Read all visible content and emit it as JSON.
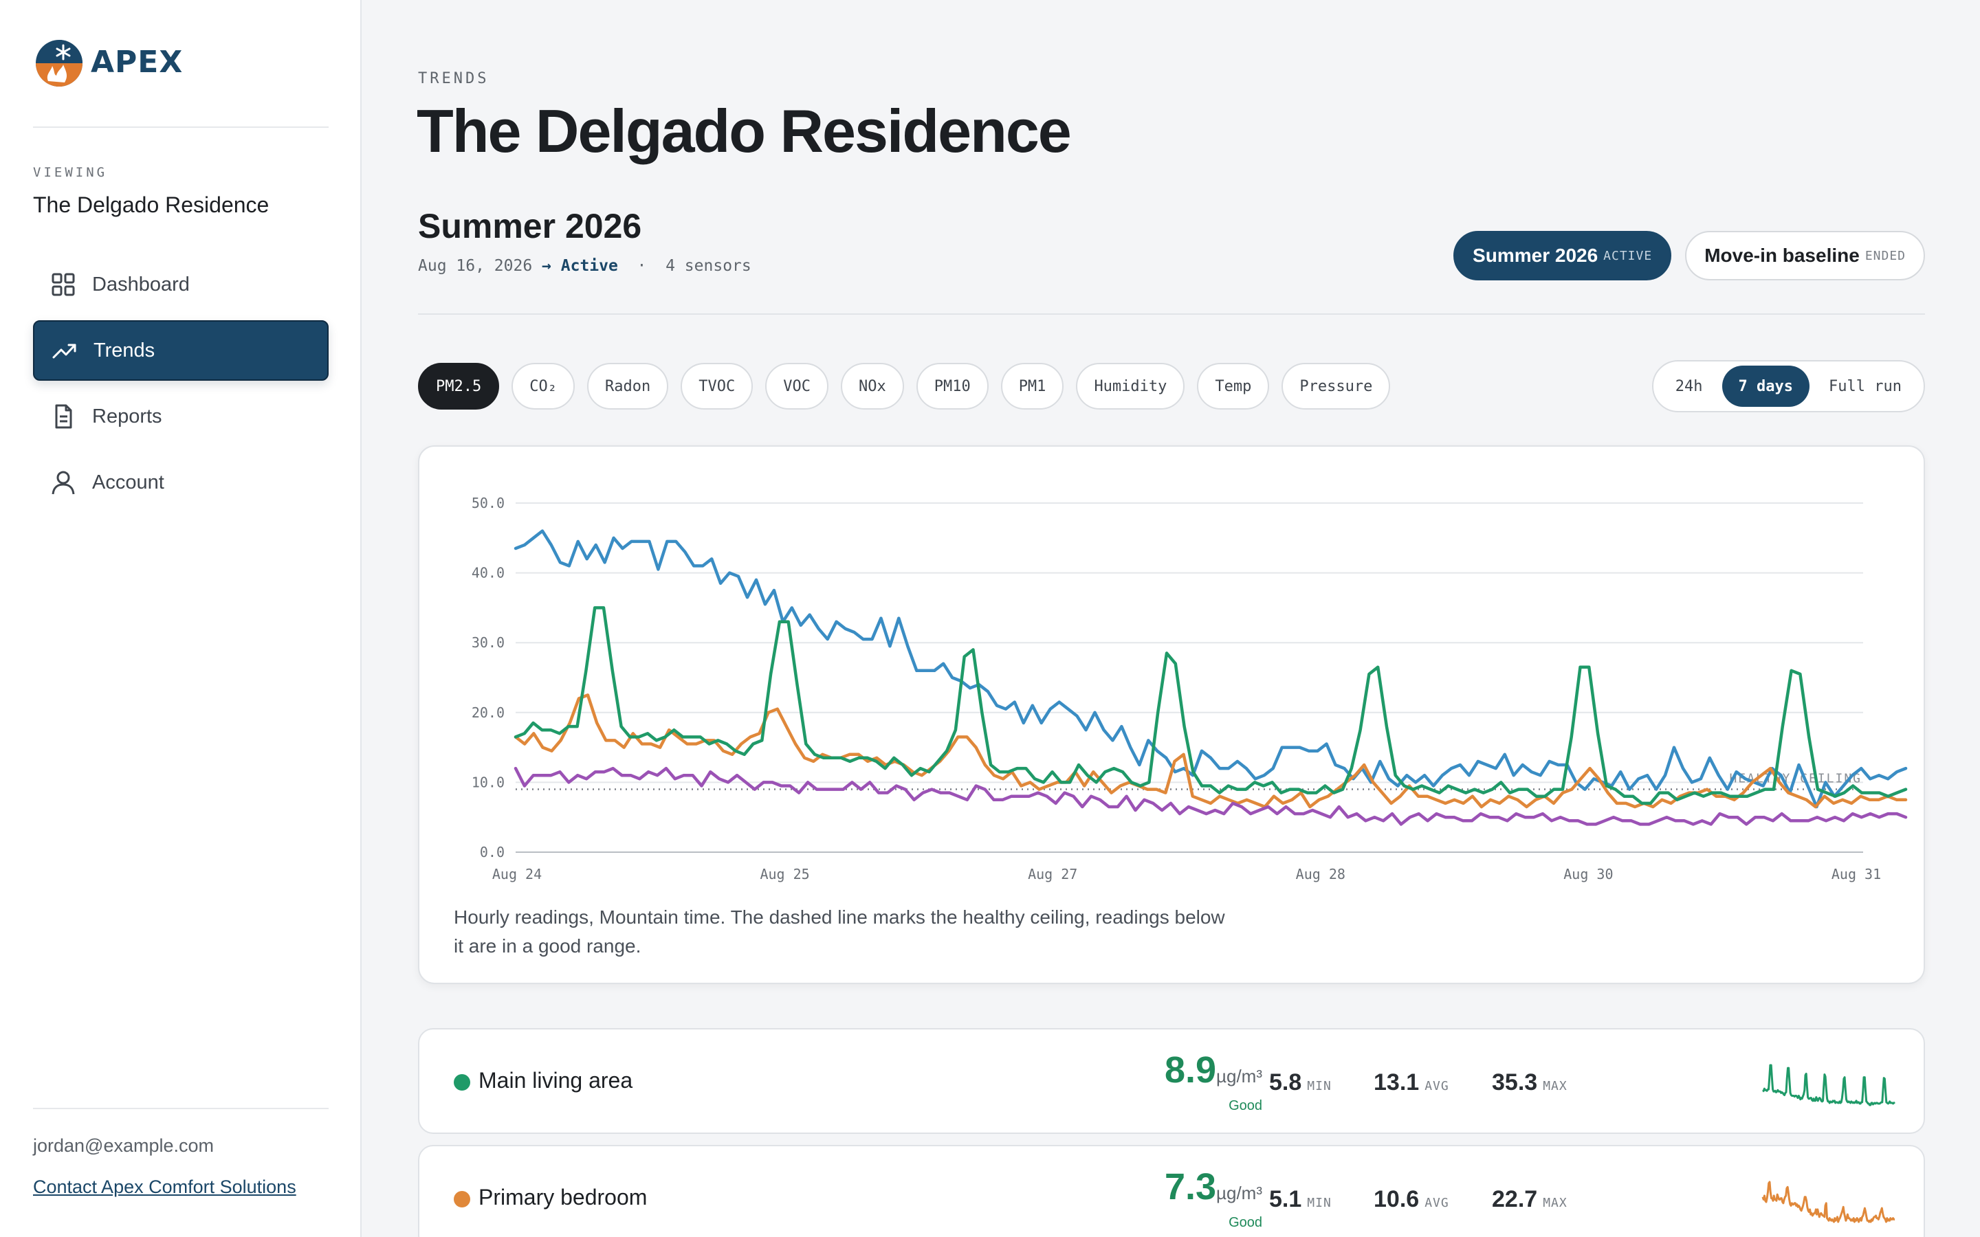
{
  "brand": {
    "name": "APEX"
  },
  "sidebar": {
    "viewing_label": "VIEWING",
    "viewing_name": "The Delgado Residence",
    "nav": [
      {
        "label": "Dashboard",
        "icon": "grid-icon",
        "active": false
      },
      {
        "label": "Trends",
        "icon": "trend-icon",
        "active": true
      },
      {
        "label": "Reports",
        "icon": "document-icon",
        "active": false
      },
      {
        "label": "Account",
        "icon": "user-icon",
        "active": false
      }
    ],
    "user_email": "jordan@example.com",
    "contact_link": "Contact Apex Comfort Solutions"
  },
  "header": {
    "eyebrow": "TRENDS",
    "title": "The Delgado Residence"
  },
  "season": {
    "title": "Summer 2026",
    "start": "Aug 16, 2026",
    "arrow": "→",
    "status": "Active",
    "separator": "·",
    "sensors": "4 sensors",
    "pills": [
      {
        "label": "Summer 2026",
        "tag": "ACTIVE",
        "selected": true
      },
      {
        "label": "Move-in baseline",
        "tag": "ENDED",
        "selected": false
      }
    ]
  },
  "metrics": [
    "PM2.5",
    "CO₂",
    "Radon",
    "TVOC",
    "VOC",
    "NOx",
    "PM10",
    "PM1",
    "Humidity",
    "Temp",
    "Pressure"
  ],
  "selected_metric": "PM2.5",
  "ranges": [
    "24h",
    "7 days",
    "Full run"
  ],
  "selected_range": "7 days",
  "chart_caption": "Hourly readings, Mountain time. The dashed line marks the healthy ceiling, readings below it are in a good range.",
  "chart_data": {
    "type": "line",
    "x_labels": [
      "Aug 24",
      "Aug 25",
      "Aug 27",
      "Aug 28",
      "Aug 30",
      "Aug 31"
    ],
    "x_label_positions": [
      0,
      1,
      2,
      3,
      4,
      5
    ],
    "y_ticks": [
      "0.0",
      "10.0",
      "20.0",
      "30.0",
      "40.0",
      "50.0"
    ],
    "ylim": [
      0,
      50
    ],
    "grid": true,
    "reference_line": {
      "value": 9,
      "label": "HEALTHY CEILING",
      "style": "dotted"
    },
    "series": [
      {
        "color": "#3a8dc4",
        "values": [
          43.5,
          44,
          45,
          46,
          44,
          41.5,
          41,
          44.5,
          42,
          44,
          41.5,
          45,
          43.5,
          44.5,
          44.5,
          44.5,
          40.5,
          44.5,
          44.5,
          43,
          41,
          41,
          42,
          38.5,
          40,
          39.5,
          36.5,
          39,
          35.5,
          37.5,
          33,
          35,
          32.5,
          34,
          32,
          30.5,
          33,
          32,
          31.5,
          30.5,
          30.5,
          33.5,
          29.5,
          33.5,
          29.5,
          26,
          26,
          26,
          27,
          25,
          24.5,
          23.5,
          24,
          23,
          21,
          20.5,
          21.5,
          18.5,
          21,
          18.5,
          20.5,
          21.5,
          20.5,
          19.5,
          17.5,
          20,
          17.5,
          16,
          18,
          15,
          12.5,
          16,
          14.5,
          13.5,
          11.5,
          12,
          11,
          14.5,
          13.5,
          12,
          12,
          13,
          12,
          10.5,
          11,
          12,
          15,
          15,
          15,
          14.5,
          14.5,
          15.5,
          12.5,
          12,
          10.5,
          12,
          10,
          13,
          10.5,
          9.5,
          11,
          10,
          11,
          9.5,
          11,
          12,
          12.5,
          11,
          13,
          12.5,
          12,
          14,
          11,
          12.5,
          11.5,
          11,
          13,
          12.5,
          12.5,
          10,
          9,
          10.5,
          10,
          9.5,
          11.5,
          9,
          10.5,
          11,
          9,
          11,
          15,
          12,
          10,
          10.5,
          13.5,
          11,
          9,
          11.5,
          10.5,
          10,
          9.5,
          12,
          11,
          8.5,
          12.5,
          9.5,
          6.5,
          10,
          8,
          9.5,
          11,
          12,
          10.5,
          11,
          10.5,
          11.5,
          12
        ]
      },
      {
        "color": "#e0883a",
        "values": [
          16.5,
          15.5,
          17,
          15,
          14.5,
          16,
          18.5,
          22,
          22.5,
          18.5,
          16,
          16,
          15,
          17,
          15.5,
          15.5,
          15,
          17.5,
          16.5,
          15.5,
          15.5,
          16,
          16,
          14.5,
          14,
          15.5,
          16.5,
          17,
          20,
          20.5,
          18,
          15.5,
          13.5,
          13,
          14,
          13.5,
          13.5,
          14,
          14,
          13,
          13.5,
          12.5,
          13,
          12.5,
          11.5,
          11,
          12,
          13,
          14.5,
          16.5,
          16.5,
          15,
          12.5,
          11,
          10.5,
          11.5,
          9.5,
          10,
          9,
          9.5,
          10,
          10,
          11.5,
          9.5,
          11.5,
          10,
          8.5,
          9.5,
          10,
          9.5,
          9,
          9,
          8.5,
          13,
          14,
          8,
          7.5,
          7,
          8,
          7.5,
          7,
          7.5,
          7,
          6.5,
          8,
          7,
          7.5,
          8.5,
          6.5,
          7.5,
          8,
          9,
          10,
          11,
          12.5,
          10,
          8.5,
          7,
          8,
          9.5,
          8,
          8,
          7.5,
          7,
          7.5,
          7,
          8,
          6.5,
          7.5,
          7,
          8,
          7.5,
          6.5,
          7.5,
          8,
          7,
          8.5,
          9,
          10.5,
          12,
          10.5,
          8.5,
          7,
          7,
          6.5,
          7,
          6.5,
          7.5,
          7,
          8,
          8.5,
          8.5,
          9,
          8,
          8,
          7.5,
          8.5,
          10,
          11,
          12,
          10,
          8.5,
          8,
          7.5,
          6.5,
          8,
          7,
          7.5,
          7,
          8,
          7.5,
          7.5,
          8,
          7.5,
          7.5
        ]
      },
      {
        "color": "#1f9a68",
        "values": [
          16.5,
          17,
          18.5,
          17.5,
          17.5,
          17,
          18,
          18,
          26,
          35,
          35,
          26,
          18,
          16.5,
          16.5,
          17,
          16,
          16.5,
          17.5,
          16.5,
          16.5,
          16.5,
          15.5,
          16,
          15.5,
          14.5,
          14,
          15.5,
          16,
          25.5,
          33,
          33,
          24,
          15.5,
          14,
          13.5,
          13.5,
          13.5,
          13,
          13.5,
          13.5,
          13,
          12,
          13.5,
          12.5,
          11,
          12,
          11.5,
          13,
          14.5,
          17.5,
          28,
          29,
          20,
          12.5,
          11.5,
          11.5,
          12,
          12,
          10.5,
          10,
          11.5,
          10,
          10,
          12.5,
          11,
          10,
          11.5,
          12,
          11.5,
          10,
          9.5,
          10,
          20,
          28.5,
          27,
          18,
          11.5,
          9.5,
          9.5,
          8.5,
          9.5,
          9,
          9,
          10,
          9.5,
          10,
          8.5,
          9,
          9,
          8.5,
          8.5,
          9.5,
          8.5,
          9,
          12,
          17.5,
          25.5,
          26.5,
          18,
          11,
          9.5,
          9,
          9.5,
          9,
          8.5,
          9.5,
          9,
          8.5,
          9,
          8.5,
          9,
          10,
          8.5,
          9,
          9,
          8,
          8,
          9,
          9,
          16.5,
          26.5,
          26.5,
          17,
          9.5,
          9,
          8,
          8,
          7,
          7,
          8.5,
          8.5,
          7.5,
          8,
          8.5,
          8,
          8.5,
          8.5,
          8,
          8,
          8,
          8.5,
          9,
          9,
          18,
          26,
          25.5,
          16.5,
          9,
          8.5,
          8,
          8.5,
          9.5,
          8.5,
          8.5,
          8.5,
          8,
          8.5,
          9
        ]
      },
      {
        "color": "#9b52b5",
        "values": [
          12,
          9.5,
          11,
          11,
          11,
          11.5,
          10,
          11,
          10.5,
          11.5,
          11.5,
          12,
          11,
          11,
          10.5,
          11.5,
          11,
          12,
          10.5,
          11,
          11,
          9.5,
          11.5,
          10.5,
          10,
          11,
          10,
          9,
          10,
          10,
          9.5,
          9.5,
          8.5,
          10,
          9,
          9,
          9,
          9,
          10,
          9,
          10,
          8.5,
          8.5,
          9.5,
          9,
          7.5,
          8.5,
          9,
          8.5,
          8.5,
          8,
          7.5,
          9.5,
          9,
          7.5,
          7.5,
          8,
          8,
          8,
          8.5,
          8,
          7,
          8.5,
          8,
          6.5,
          8,
          7.5,
          6.5,
          6.5,
          8,
          6,
          7.5,
          7,
          6,
          7,
          5.5,
          6.5,
          6,
          5.5,
          6,
          5.5,
          7,
          6.5,
          5.5,
          6,
          6.5,
          5.5,
          6.5,
          5.5,
          5.5,
          6,
          5.5,
          5,
          6.5,
          5,
          5.5,
          4.5,
          5,
          4.5,
          5.5,
          4,
          5,
          5.5,
          4.5,
          5.5,
          5,
          5,
          4.5,
          4.5,
          5.5,
          5,
          5,
          4.5,
          5.5,
          5,
          5,
          5.5,
          4.5,
          5,
          4.5,
          4.5,
          4,
          4,
          4.5,
          5,
          4.5,
          4.5,
          4,
          4,
          4.5,
          5,
          4.5,
          4.5,
          4,
          4.5,
          4,
          5.5,
          5,
          5,
          4,
          5,
          5,
          4.5,
          5.5,
          4.5,
          4.5,
          4.5,
          5,
          4.5,
          5,
          4.5,
          5.5,
          5,
          5.5,
          5,
          5.5,
          5.5,
          5
        ]
      }
    ]
  },
  "sensors": [
    {
      "name": "Main living area",
      "color": "#1f9a68",
      "current": "8.9",
      "unit": "µg/m³",
      "status": "Good",
      "min": "5.8",
      "min_label": "MIN",
      "avg": "13.1",
      "avg_label": "AVG",
      "max": "35.3",
      "max_label": "MAX"
    },
    {
      "name": "Primary bedroom",
      "color": "#e0883a",
      "current": "7.3",
      "unit": "µg/m³",
      "status": "Good",
      "min": "5.1",
      "min_label": "MIN",
      "avg": "10.6",
      "avg_label": "AVG",
      "max": "22.7",
      "max_label": "MAX"
    }
  ]
}
